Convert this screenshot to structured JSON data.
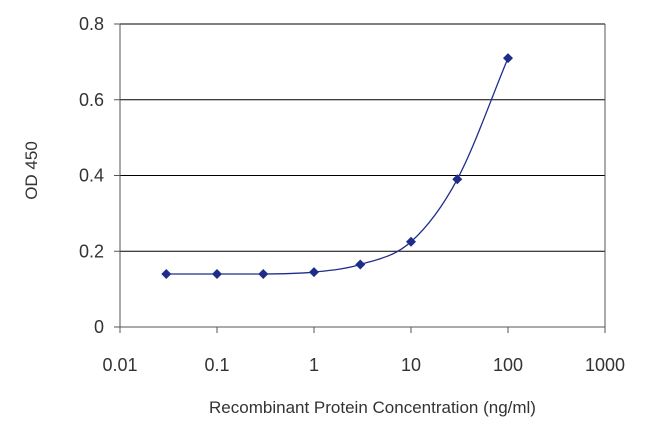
{
  "chart_data": {
    "type": "scatter",
    "title": "",
    "xlabel": "Recombinant Protein Concentration (ng/ml)",
    "ylabel": "OD 450",
    "x_scale": "log",
    "xlim": [
      0.01,
      1000
    ],
    "ylim": [
      0,
      0.8
    ],
    "x_ticks": [
      "0.01",
      "0.1",
      "1",
      "10",
      "100",
      "1000"
    ],
    "y_ticks": [
      "0",
      "0.2",
      "0.4",
      "0.6",
      "0.8"
    ],
    "grid": "horizontal",
    "legend": "none",
    "series": [
      {
        "x": [
          0.03,
          0.1,
          0.3,
          1,
          3,
          10,
          30,
          100
        ],
        "y": [
          0.14,
          0.14,
          0.14,
          0.145,
          0.165,
          0.225,
          0.39,
          0.71
        ]
      }
    ],
    "colors": {
      "series": "#1f2d8a",
      "grid": "#000000",
      "axis": "#555555",
      "text": "#333333"
    }
  }
}
